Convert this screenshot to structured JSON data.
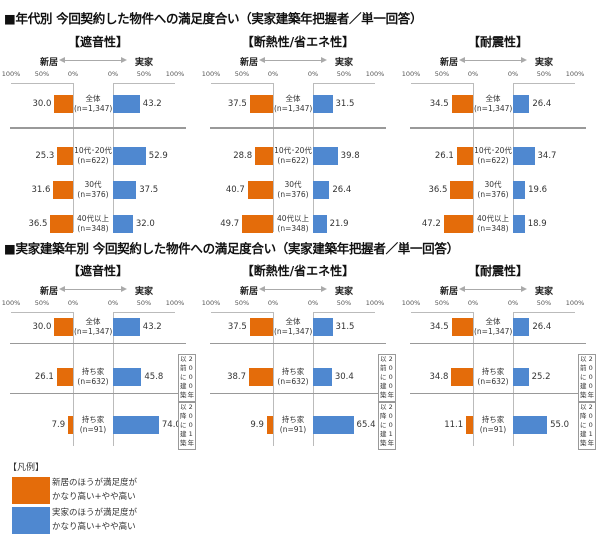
{
  "colors": {
    "new_home": "#e46c0a",
    "parent_home": "#4f88d0"
  },
  "chart_data": [
    {
      "type": "bar",
      "title": "年代別 今回契約した物件への満足度合い（実家建築年把握者／単一回答）",
      "subtitle": "【遮音性】",
      "orientation": "horizontal-diverging",
      "left_label": "新居",
      "right_label": "実家",
      "axis_ticks": [
        "100%",
        "50%",
        "0%",
        "0%",
        "50%",
        "100%"
      ],
      "categories": [
        "全体 (n=1,347)",
        "10代・20代 (n=622)",
        "30代 (n=376)",
        "40代以上 (n=348)"
      ],
      "series": [
        {
          "name": "新居のほうが満足度がかなり高い+やや高い",
          "values": [
            30.0,
            25.3,
            31.6,
            36.5
          ]
        },
        {
          "name": "実家のほうが満足度がかなり高い+やや高い",
          "values": [
            43.2,
            52.9,
            37.5,
            32.0
          ]
        }
      ],
      "xlim": [
        0,
        100
      ]
    },
    {
      "type": "bar",
      "title": "年代別 今回契約した物件への満足度合い（実家建築年把握者／単一回答）",
      "subtitle": "【断熱性/省エネ性】",
      "orientation": "horizontal-diverging",
      "left_label": "新居",
      "right_label": "実家",
      "axis_ticks": [
        "100%",
        "50%",
        "0%",
        "0%",
        "50%",
        "100%"
      ],
      "categories": [
        "全体 (n=1,347)",
        "10代・20代 (n=622)",
        "30代 (n=376)",
        "40代以上 (n=348)"
      ],
      "series": [
        {
          "name": "新居のほうが満足度がかなり高い+やや高い",
          "values": [
            37.5,
            28.8,
            40.7,
            49.7
          ]
        },
        {
          "name": "実家のほうが満足度がかなり高い+やや高い",
          "values": [
            31.5,
            39.8,
            26.4,
            21.9
          ]
        }
      ],
      "xlim": [
        0,
        100
      ]
    },
    {
      "type": "bar",
      "title": "年代別 今回契約した物件への満足度合い（実家建築年把握者／単一回答）",
      "subtitle": "【耐震性】",
      "orientation": "horizontal-diverging",
      "left_label": "新居",
      "right_label": "実家",
      "axis_ticks": [
        "100%",
        "50%",
        "0%",
        "0%",
        "50%",
        "100%"
      ],
      "categories": [
        "全体 (n=1,347)",
        "10代・20代 (n=622)",
        "30代 (n=376)",
        "40代以上 (n=348)"
      ],
      "series": [
        {
          "name": "新居のほうが満足度がかなり高い+やや高い",
          "values": [
            34.5,
            26.1,
            36.5,
            47.2
          ]
        },
        {
          "name": "実家のほうが満足度がかなり高い+やや高い",
          "values": [
            26.4,
            34.7,
            19.6,
            18.9
          ]
        }
      ],
      "xlim": [
        0,
        100
      ]
    },
    {
      "type": "bar",
      "title": "実家建築年別 今回契約した物件への満足度合い（実家建築年把握者／単一回答）",
      "subtitle": "【遮音性】",
      "orientation": "horizontal-diverging",
      "left_label": "新居",
      "right_label": "実家",
      "axis_ticks": [
        "100%",
        "50%",
        "0%",
        "0%",
        "50%",
        "100%"
      ],
      "categories": [
        "全体 (n=1,347)",
        "持ち家 (n=632) 2000年以前に建築",
        "持ち家 (n=91) 2001年以降に建築"
      ],
      "series": [
        {
          "name": "新居のほうが満足度がかなり高い+やや高い",
          "values": [
            30.0,
            26.1,
            7.9
          ]
        },
        {
          "name": "実家のほうが満足度がかなり高い+やや高い",
          "values": [
            43.2,
            45.8,
            74.0
          ]
        }
      ],
      "xlim": [
        0,
        100
      ]
    },
    {
      "type": "bar",
      "title": "実家建築年別 今回契約した物件への満足度合い（実家建築年把握者／単一回答）",
      "subtitle": "【断熱性/省エネ性】",
      "orientation": "horizontal-diverging",
      "left_label": "新居",
      "right_label": "実家",
      "axis_ticks": [
        "100%",
        "50%",
        "0%",
        "0%",
        "50%",
        "100%"
      ],
      "categories": [
        "全体 (n=1,347)",
        "持ち家 (n=632) 2000年以前に建築",
        "持ち家 (n=91) 2001年以降に建築"
      ],
      "series": [
        {
          "name": "新居のほうが満足度がかなり高い+やや高い",
          "values": [
            37.5,
            38.7,
            9.9
          ]
        },
        {
          "name": "実家のほうが満足度がかなり高い+やや高い",
          "values": [
            31.5,
            30.4,
            65.4
          ]
        }
      ],
      "xlim": [
        0,
        100
      ]
    },
    {
      "type": "bar",
      "title": "実家建築年別 今回契約した物件への満足度合い（実家建築年把握者／単一回答）",
      "subtitle": "【耐震性】",
      "orientation": "horizontal-diverging",
      "left_label": "新居",
      "right_label": "実家",
      "axis_ticks": [
        "100%",
        "50%",
        "0%",
        "0%",
        "50%",
        "100%"
      ],
      "categories": [
        "全体 (n=1,347)",
        "持ち家 (n=632) 2000年以前に建築",
        "持ち家 (n=91) 2001年以降に建築"
      ],
      "series": [
        {
          "name": "新居のほうが満足度がかなり高い+やや高い",
          "values": [
            34.5,
            34.8,
            11.1
          ]
        },
        {
          "name": "実家のほうが満足度がかなり高い+やや高い",
          "values": [
            26.4,
            25.2,
            55.0
          ]
        }
      ],
      "xlim": [
        0,
        100
      ]
    }
  ],
  "sections": [
    {
      "title": "■年代別 今回契約した物件への満足度合い（実家建築年把握者／単一回答）",
      "panels": [
        {
          "title": "【遮音性】",
          "left": "新居",
          "right": "実家",
          "rows": [
            {
              "cat1": "全体",
              "cat2": "(n=1,347)",
              "new": "30.0",
              "parent": "43.2"
            },
            {
              "cat1": "10代･20代",
              "cat2": "(n=622)",
              "new": "25.3",
              "parent": "52.9"
            },
            {
              "cat1": "30代",
              "cat2": "(n=376)",
              "new": "31.6",
              "parent": "37.5"
            },
            {
              "cat1": "40代以上",
              "cat2": "(n=348)",
              "new": "36.5",
              "parent": "32.0"
            }
          ]
        },
        {
          "title": "【断熱性/省エネ性】",
          "left": "新居",
          "right": "実家",
          "rows": [
            {
              "cat1": "全体",
              "cat2": "(n=1,347)",
              "new": "37.5",
              "parent": "31.5"
            },
            {
              "cat1": "10代･20代",
              "cat2": "(n=622)",
              "new": "28.8",
              "parent": "39.8"
            },
            {
              "cat1": "30代",
              "cat2": "(n=376)",
              "new": "40.7",
              "parent": "26.4"
            },
            {
              "cat1": "40代以上",
              "cat2": "(n=348)",
              "new": "49.7",
              "parent": "21.9"
            }
          ]
        },
        {
          "title": "【耐震性】",
          "left": "新居",
          "right": "実家",
          "rows": [
            {
              "cat1": "全体",
              "cat2": "(n=1,347)",
              "new": "34.5",
              "parent": "26.4"
            },
            {
              "cat1": "10代･20代",
              "cat2": "(n=622)",
              "new": "26.1",
              "parent": "34.7"
            },
            {
              "cat1": "30代",
              "cat2": "(n=376)",
              "new": "36.5",
              "parent": "19.6"
            },
            {
              "cat1": "40代以上",
              "cat2": "(n=348)",
              "new": "47.2",
              "parent": "18.9"
            }
          ]
        }
      ]
    },
    {
      "title": "■実家建築年別 今回契約した物件への満足度合い（実家建築年把握者／単一回答）",
      "panels": [
        {
          "title": "【遮音性】",
          "left": "新居",
          "right": "実家",
          "rows": [
            {
              "cat1": "全体",
              "cat2": "(n=1,347)",
              "new": "30.0",
              "parent": "43.2"
            },
            {
              "cat1": "持ち家",
              "cat2": "(n=632)",
              "new": "26.1",
              "parent": "45.8"
            },
            {
              "cat1": "持ち家",
              "cat2": "(n=91)",
              "new": "7.9",
              "parent": "74.0"
            }
          ]
        },
        {
          "title": "【断熱性/省エネ性】",
          "left": "新居",
          "right": "実家",
          "rows": [
            {
              "cat1": "全体",
              "cat2": "(n=1,347)",
              "new": "37.5",
              "parent": "31.5"
            },
            {
              "cat1": "持ち家",
              "cat2": "(n=632)",
              "new": "38.7",
              "parent": "30.4"
            },
            {
              "cat1": "持ち家",
              "cat2": "(n=91)",
              "new": "9.9",
              "parent": "65.4"
            }
          ]
        },
        {
          "title": "【耐震性】",
          "left": "新居",
          "right": "実家",
          "rows": [
            {
              "cat1": "全体",
              "cat2": "(n=1,347)",
              "new": "34.5",
              "parent": "26.4"
            },
            {
              "cat1": "持ち家",
              "cat2": "(n=632)",
              "new": "34.8",
              "parent": "25.2"
            },
            {
              "cat1": "持ち家",
              "cat2": "(n=91)",
              "new": "11.1",
              "parent": "55.0"
            }
          ]
        }
      ],
      "group_labels": [
        {
          "col1": "以前に建築",
          "col2": "2000年",
          "full": "2000年以前に建築"
        },
        {
          "col1": "以降に建築",
          "col2": "2001年",
          "full": "2001年以降に建築"
        }
      ]
    }
  ],
  "axis_ticks": {
    "p100": "100%",
    "p50": "50%",
    "p0": "0%"
  },
  "legend": {
    "title": "【凡例】",
    "items": [
      {
        "line1": "新居のほうが満足度が",
        "line2": "かなり高い+やや高い"
      },
      {
        "line1": "実家のほうが満足度が",
        "line2": "かなり高い+やや高い"
      }
    ]
  }
}
